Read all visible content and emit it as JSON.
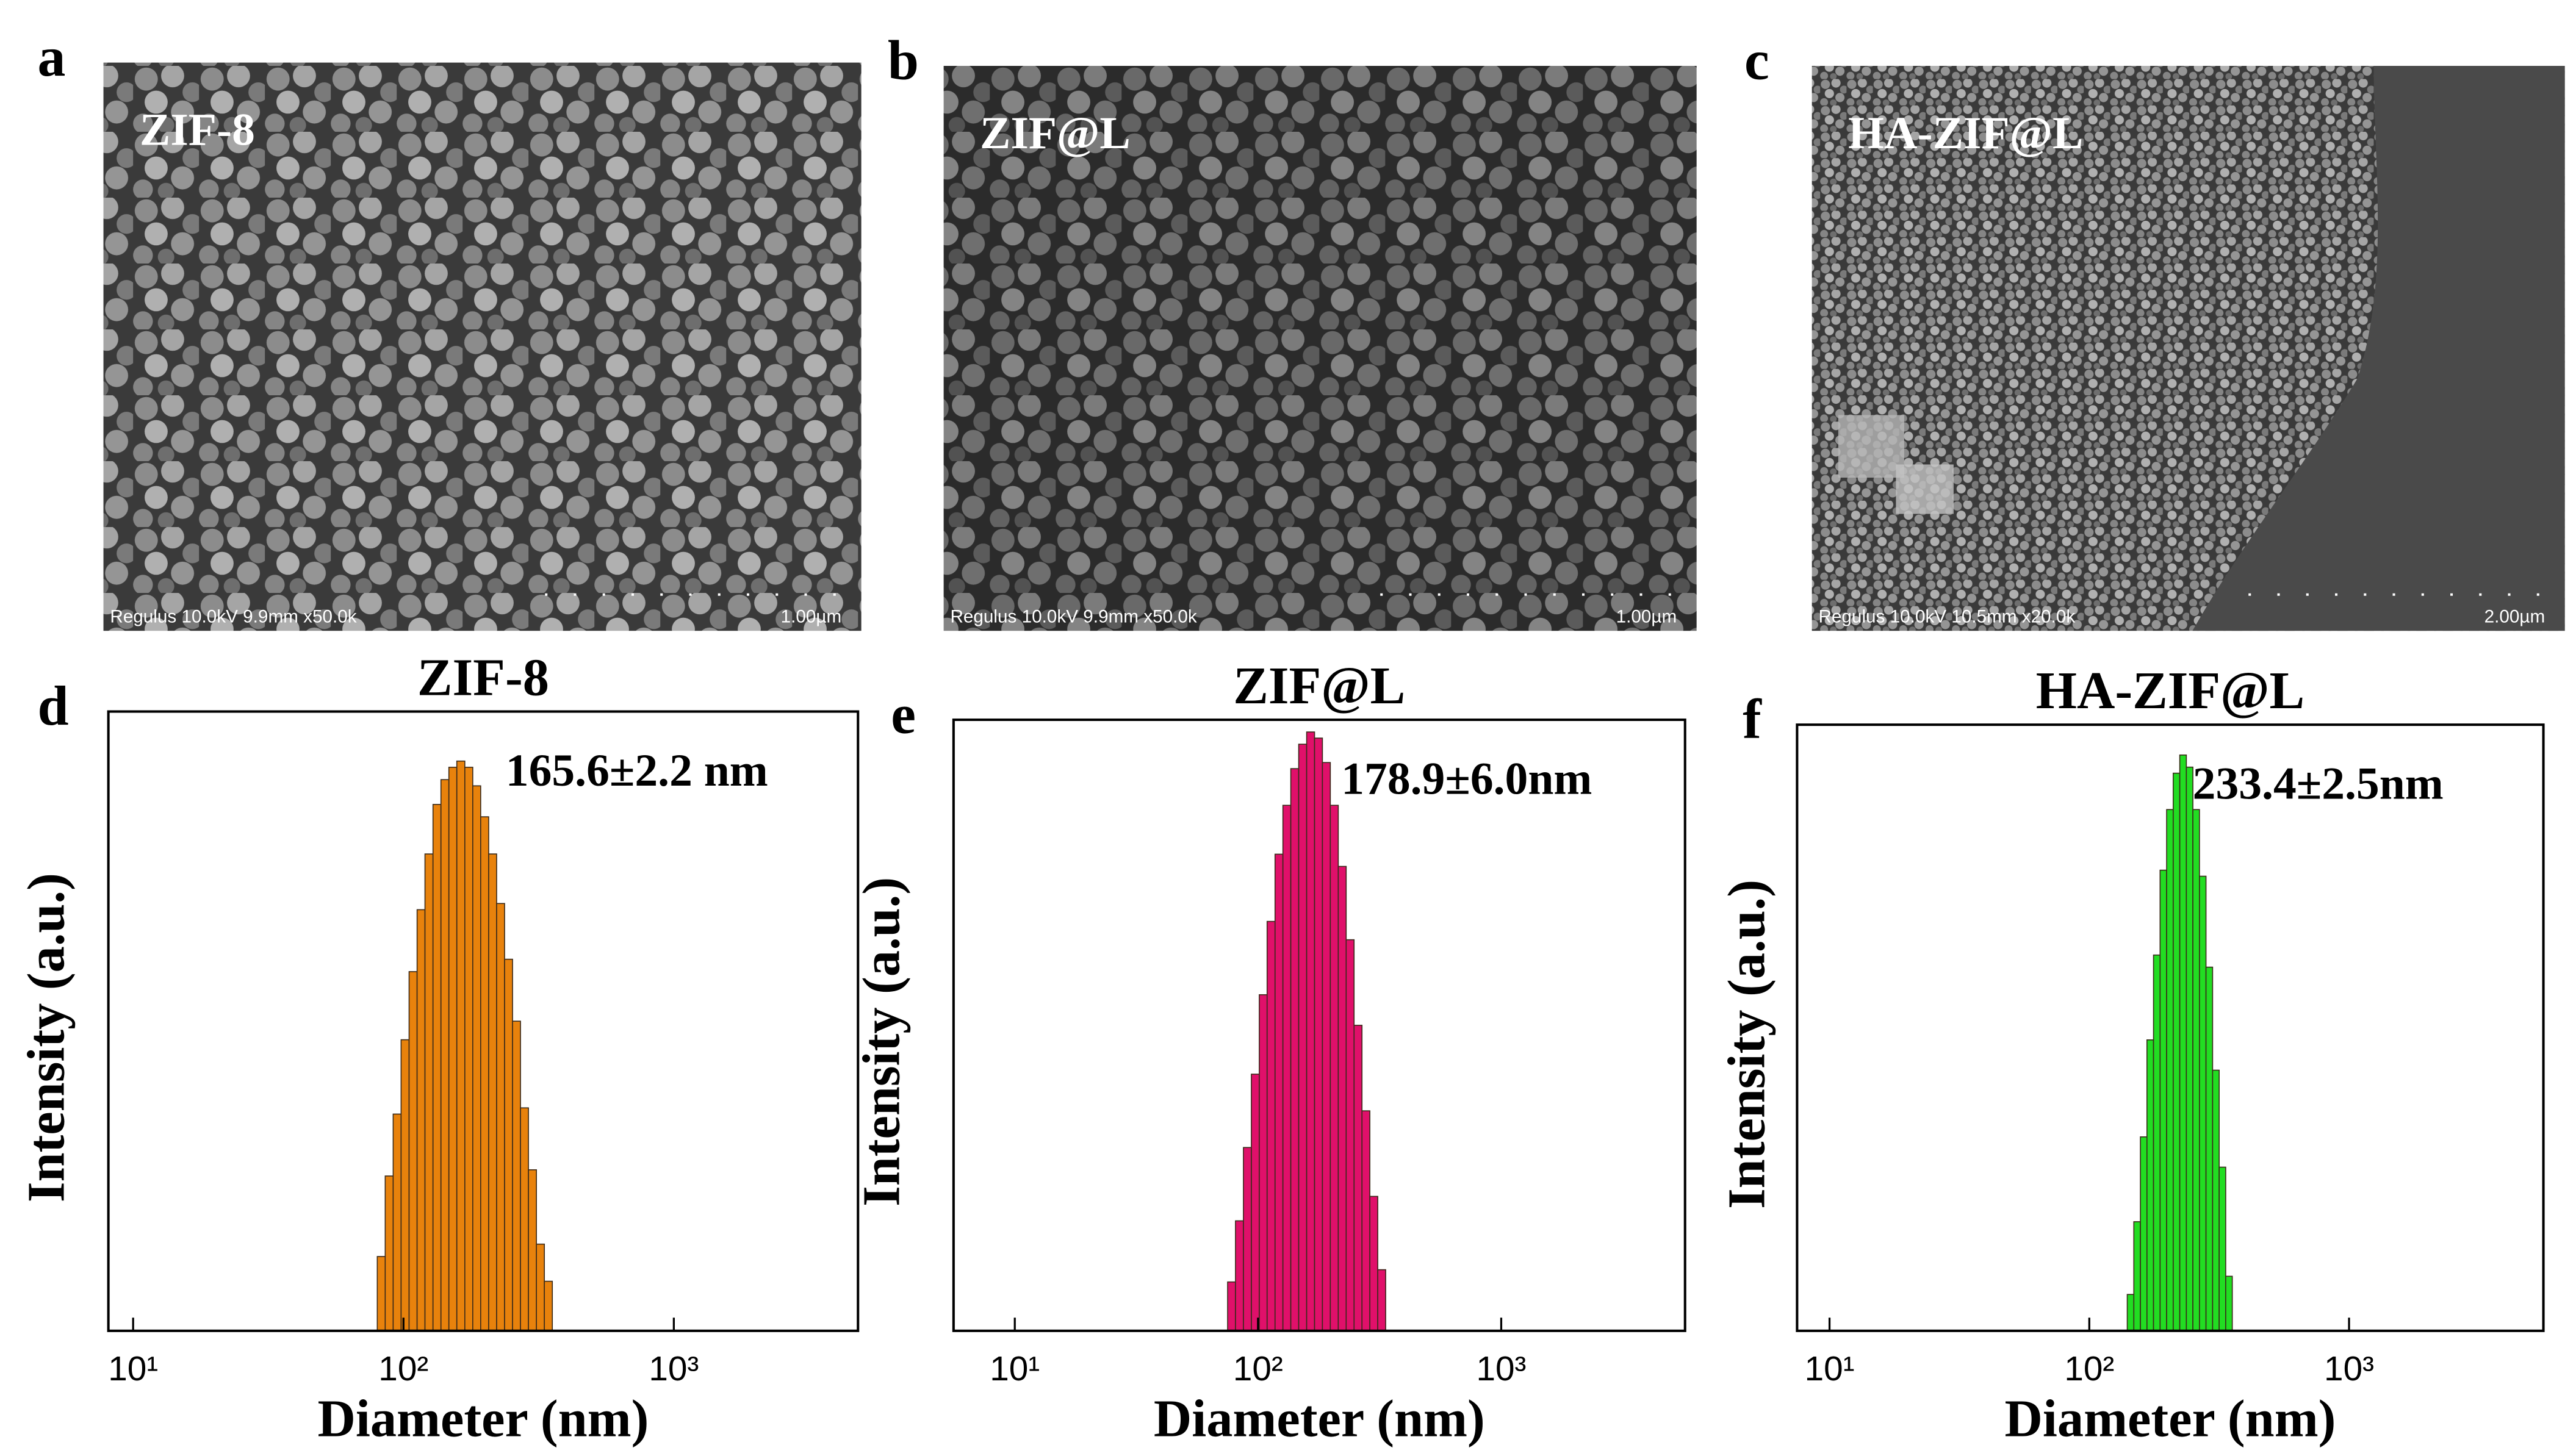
{
  "images": [
    {
      "panel": "a",
      "label": "ZIF-8",
      "info": "Regulus 10.0kV 9.9mm x50.0k",
      "scale": "1.00µm"
    },
    {
      "panel": "b",
      "label": "ZIF@L",
      "info": "Regulus 10.0kV 9.9mm x50.0k",
      "scale": "1.00µm"
    },
    {
      "panel": "c",
      "label": "HA-ZIF@L",
      "info": "Regulus 10.0kV 10.5mm x20.0k",
      "scale": "2.00µm"
    }
  ],
  "chart_data": [
    {
      "type": "histogram",
      "panel": "d",
      "title": "ZIF-8",
      "annotation": "165.6±2.2 nm",
      "xlabel": "Diameter (nm)",
      "ylabel": "Intensity (a.u.)",
      "xscale": "log",
      "color": "#e8820c",
      "bins": [
        80,
        85.6,
        91.6,
        98.0,
        104.9,
        112.3,
        120.1,
        128.6,
        137.6,
        147.2,
        157.5,
        168.6,
        180.4,
        193.0,
        206.6,
        221.1,
        236.6,
        253.2,
        270.9,
        289.9,
        310.3,
        332.0,
        355.3
      ],
      "values": [
        12,
        25,
        35,
        47,
        58,
        68,
        77,
        85,
        89,
        91,
        92,
        91,
        88,
        83,
        77,
        69,
        60,
        50,
        36,
        26,
        14,
        8
      ],
      "xlim": [
        8.1,
        4800
      ],
      "ylim": [
        0,
        100
      ],
      "xticks": [
        {
          "value": 10,
          "label": "10¹"
        },
        {
          "value": 100,
          "label": "10²"
        },
        {
          "value": 1000,
          "label": "10³"
        }
      ]
    },
    {
      "type": "histogram",
      "panel": "e",
      "title": "ZIF@L",
      "annotation": "178.9±6.0nm",
      "xlabel": "Diameter (nm)",
      "ylabel": "Intensity (a.u.)",
      "xscale": "log",
      "color": "#e0106a",
      "bins": [
        75,
        80.8,
        87.1,
        93.9,
        101.2,
        109.0,
        117.5,
        126.6,
        136.4,
        147.0,
        158.5,
        170.8,
        184.0,
        198.3,
        213.8,
        230.4,
        248.3,
        267.6,
        288.3,
        310.7,
        334.9
      ],
      "values": [
        8,
        18,
        30,
        42,
        55,
        67,
        78,
        86,
        92,
        96,
        98,
        97,
        93,
        86,
        76,
        64,
        50,
        36,
        22,
        10
      ],
      "xlim": [
        5.6,
        5700
      ],
      "ylim": [
        0,
        100
      ],
      "xticks": [
        {
          "value": 10,
          "label": "10¹"
        },
        {
          "value": 100,
          "label": "10²"
        },
        {
          "value": 1000,
          "label": "10³"
        }
      ]
    },
    {
      "type": "histogram",
      "panel": "f",
      "title": "HA-ZIF@L",
      "annotation": "233.4±2.5nm",
      "xlabel": "Diameter (nm)",
      "ylabel": "Intensity (a.u.)",
      "xscale": "log",
      "color": "#22dd22",
      "bins": [
        140,
        148.4,
        157.3,
        166.7,
        176.7,
        187.3,
        198.5,
        210.4,
        223.0,
        236.4,
        250.5,
        265.5,
        281.4,
        298.3,
        316.2,
        335.1,
        355.2
      ],
      "values": [
        6,
        18,
        32,
        48,
        62,
        76,
        86,
        92,
        95,
        93,
        86,
        75,
        60,
        43,
        27,
        9
      ],
      "xlim": [
        7.5,
        5600
      ],
      "ylim": [
        0,
        100
      ],
      "xticks": [
        {
          "value": 10,
          "label": "10¹"
        },
        {
          "value": 100,
          "label": "10²"
        },
        {
          "value": 1000,
          "label": "10³"
        }
      ]
    }
  ]
}
